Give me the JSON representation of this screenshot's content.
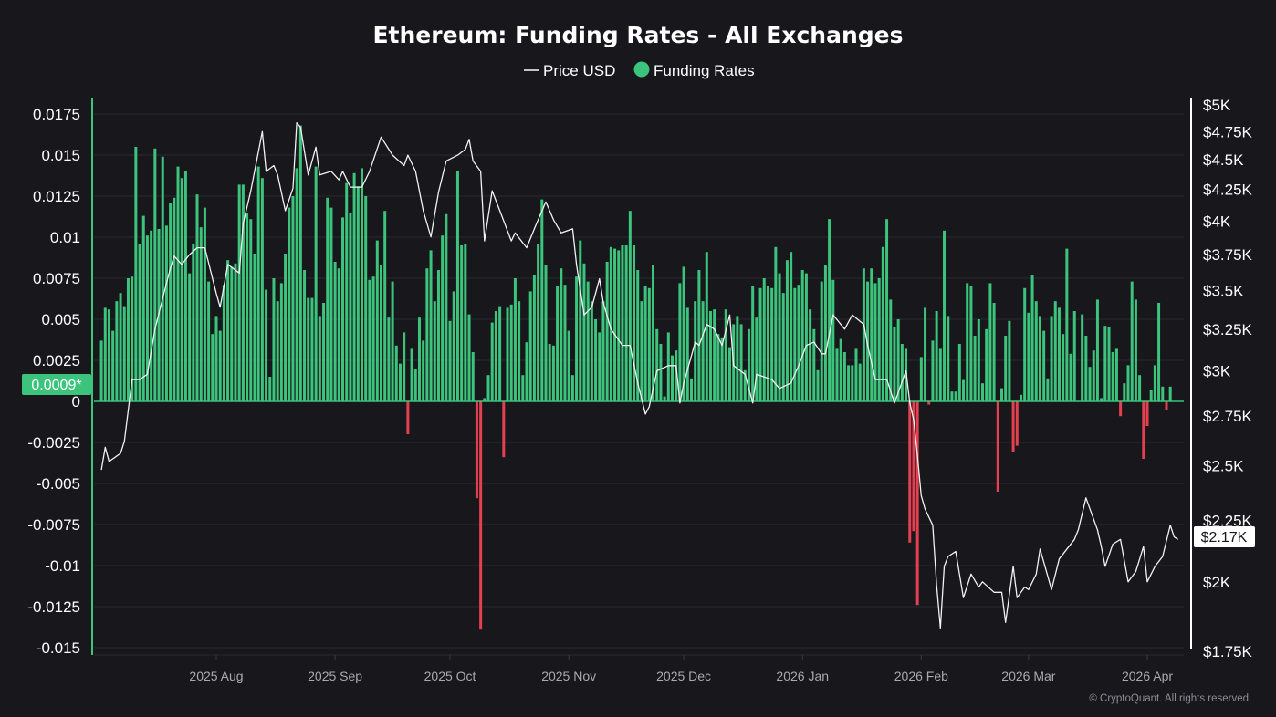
{
  "chart_data": {
    "type": "bar",
    "title": "Ethereum: Funding Rates - All Exchanges",
    "legend": [
      {
        "name": "Price USD",
        "marker": "line",
        "color": "#ffffff"
      },
      {
        "name": "Funding Rates",
        "marker": "dot",
        "color": "#3cc47c"
      }
    ],
    "legend_position": "top-center",
    "colors": {
      "positive": "#3cc47c",
      "negative": "#e5404f",
      "price": "#ffffff",
      "background": "#17171c"
    },
    "grid": true,
    "left_axis": {
      "ticks": [
        "0.0175",
        "0.015",
        "0.0125",
        "0.01",
        "0.0075",
        "0.005",
        "0.0025",
        "0",
        "-0.0025",
        "-0.005",
        "-0.0075",
        "-0.01",
        "-0.0125",
        "-0.015"
      ],
      "ylim": [
        -0.015,
        0.0175
      ]
    },
    "right_axis": {
      "scale": "log",
      "ticks": [
        {
          "label": "$5K",
          "value": 5000
        },
        {
          "label": "$4.75K",
          "value": 4750
        },
        {
          "label": "$4.5K",
          "value": 4500
        },
        {
          "label": "$4.25K",
          "value": 4250
        },
        {
          "label": "$4K",
          "value": 4000
        },
        {
          "label": "$3.75K",
          "value": 3750
        },
        {
          "label": "$3.5K",
          "value": 3500
        },
        {
          "label": "$3.25K",
          "value": 3250
        },
        {
          "label": "$3K",
          "value": 3000
        },
        {
          "label": "$2.75K",
          "value": 2750
        },
        {
          "label": "$2.5K",
          "value": 2500
        },
        {
          "label": "$2.25K",
          "value": 2250
        },
        {
          "label": "$2K",
          "value": 2000
        },
        {
          "label": "$1.75K",
          "value": 1750
        }
      ],
      "ylim": [
        1750,
        5000
      ]
    },
    "x_axis": {
      "ticks": [
        {
          "label": "2025 Aug",
          "date": "2025-08-01"
        },
        {
          "label": "2025 Sep",
          "date": "2025-09-01"
        },
        {
          "label": "2025 Oct",
          "date": "2025-10-01"
        },
        {
          "label": "2025 Nov",
          "date": "2025-11-01"
        },
        {
          "label": "2025 Dec",
          "date": "2025-12-01"
        },
        {
          "label": "2026 Jan",
          "date": "2026-01-01"
        },
        {
          "label": "2026 Feb",
          "date": "2026-02-01"
        },
        {
          "label": "2026 Mar",
          "date": "2026-03-01"
        },
        {
          "label": "2026 Apr",
          "date": "2026-04-01"
        }
      ]
    },
    "current_values": {
      "funding_rate": "0.0009*",
      "price": "$2.17K"
    },
    "funding_rates": [
      {
        "month": "2025-07",
        "start_day": 2,
        "values": [
          0.0037,
          0.0057,
          0.0056,
          0.0043,
          0.0061,
          0.0066,
          0.0058,
          0.0075,
          0.0076,
          0.0155,
          0.0096,
          0.0113,
          0.0101,
          0.0104,
          0.0154,
          0.0105,
          0.0149,
          0.0107,
          0.0121,
          0.0124,
          0.0143,
          0.0136,
          0.014,
          0.0078,
          0.0096,
          0.0126,
          0.0106,
          0.0118,
          0.0073,
          0.0041
        ]
      },
      {
        "month": "2025-08",
        "start_day": 1,
        "values": [
          0.0052,
          0.0043,
          0.0071,
          0.0086,
          0.0082,
          0.0084,
          0.0132,
          0.0132,
          0.0115,
          0.0111,
          0.009,
          0.0143,
          0.0136,
          0.0068,
          0.0015,
          0.0075,
          0.0061,
          0.0072,
          0.009,
          0.0118,
          0.0125,
          0.0142,
          0.0168,
          0.008,
          0.0063,
          0.0063,
          0.0143,
          0.0052,
          0.006,
          0.0124,
          0.0118
        ]
      },
      {
        "month": "2025-09",
        "start_day": 1,
        "values": [
          0.0085,
          0.0081,
          0.0112,
          0.0133,
          0.0115,
          0.0139,
          0.0131,
          0.0142,
          0.0125,
          0.0074,
          0.0076,
          0.0098,
          0.0083,
          0.0116,
          0.0051,
          0.0073,
          0.0034,
          0.0023,
          0.0042,
          -0.002,
          0.0032,
          0.002,
          0.0051,
          0.0037,
          0.0081,
          0.0092,
          0.0061,
          0.008,
          0.0101,
          0.0114
        ]
      },
      {
        "month": "2025-10",
        "start_day": 1,
        "values": [
          0.0049,
          0.0067,
          0.014,
          0.0095,
          0.0096,
          0.0053,
          0.003,
          -0.0059,
          -0.0139,
          0.0002,
          0.0016,
          0.0048,
          0.0055,
          0.0058,
          -0.0034,
          0.0057,
          0.0059,
          0.0075,
          0.0061,
          0.0016,
          0.0036,
          0.0067,
          0.0077,
          0.0096,
          0.0123,
          0.0083,
          0.0035,
          0.0034,
          0.007,
          0.0081,
          0.0071
        ]
      },
      {
        "month": "2025-11",
        "start_day": 1,
        "values": [
          0.0043,
          0.0016,
          0.0076,
          0.0098,
          0.0084,
          0.0073,
          0.0061,
          0.005,
          0.0042,
          0.0061,
          0.0085,
          0.0094,
          0.0093,
          0.0092,
          0.0095,
          0.0095,
          0.0116,
          0.0095,
          0.008,
          0.0061,
          0.007,
          0.0069,
          0.0083,
          0.0044,
          0.0035,
          0.0003,
          0.0042,
          0.0028,
          0.0031,
          0.0072
        ]
      },
      {
        "month": "2025-12",
        "start_day": 1,
        "values": [
          0.0082,
          0.0057,
          0.0014,
          0.0061,
          0.008,
          0.0061,
          0.0091,
          0.0055,
          0.0056,
          0.0041,
          0.0039,
          0.0056,
          0.0033,
          0.0047,
          0.0052,
          0.0047,
          0.0019,
          0.0044,
          0.007,
          0.0051,
          0.0069,
          0.0075,
          0.007,
          0.0069,
          0.0094,
          0.0078,
          0.0066,
          0.0086,
          0.0091,
          0.0069,
          0.0071
        ]
      },
      {
        "month": "2026-01",
        "start_day": 1,
        "values": [
          0.008,
          0.0078,
          0.0056,
          0.0044,
          0.0019,
          0.0073,
          0.0083,
          0.0111,
          0.0074,
          0.0032,
          0.0038,
          0.003,
          0.0022,
          0.0022,
          0.0032,
          0.0023,
          0.0081,
          0.0073,
          0.0081,
          0.0072,
          0.0075,
          0.0094,
          0.0111,
          0.0062,
          0.0045,
          0.005,
          0.0035,
          0.0032,
          -0.0086,
          -0.0079,
          -0.0124
        ]
      },
      {
        "month": "2026-02",
        "start_day": 1,
        "values": [
          0.0027,
          0.0057,
          -0.0002,
          0.0037,
          0.0055,
          0.0032,
          0.0104,
          0.0052,
          0.0006,
          0.0006,
          0.0035,
          0.0013,
          0.0072,
          0.007,
          0.004,
          0.005,
          0.0011,
          0.0044,
          0.0072,
          0.006,
          -0.0055,
          0.0008,
          0.004,
          0.0049,
          -0.0031,
          -0.0027,
          0.0004,
          0.0069
        ]
      },
      {
        "month": "2026-03",
        "start_day": 1,
        "values": [
          0.0054,
          0.0077,
          0.0061,
          0.0052,
          0.0043,
          0.0014,
          0.0052,
          0.0061,
          0.0057,
          0.0041,
          0.0093,
          0.0029,
          0.0055,
          0,
          0.0053,
          0.004,
          0.0021,
          0.0031,
          0.0062,
          0.0002,
          0.0046,
          0.0045,
          0.003,
          0.0032,
          -0.0009,
          0.0011,
          0.0022,
          0.0073,
          0.0062,
          0.0016,
          -0.0035
        ]
      },
      {
        "month": "2026-04",
        "start_day": 1,
        "values": [
          -0.0015,
          0.0007,
          0.0022,
          0.006,
          0.0009,
          -0.0005,
          0.0009
        ]
      }
    ],
    "price_usd": [
      [
        "2025-07-02",
        2480
      ],
      [
        "2025-07-03",
        2590
      ],
      [
        "2025-07-04",
        2520
      ],
      [
        "2025-07-07",
        2560
      ],
      [
        "2025-07-08",
        2620
      ],
      [
        "2025-07-10",
        2950
      ],
      [
        "2025-07-12",
        2950
      ],
      [
        "2025-07-14",
        2980
      ],
      [
        "2025-07-16",
        3250
      ],
      [
        "2025-07-19",
        3550
      ],
      [
        "2025-07-20",
        3650
      ],
      [
        "2025-07-21",
        3740
      ],
      [
        "2025-07-23",
        3680
      ],
      [
        "2025-07-25",
        3750
      ],
      [
        "2025-07-27",
        3800
      ],
      [
        "2025-07-29",
        3800
      ],
      [
        "2025-08-01",
        3480
      ],
      [
        "2025-08-02",
        3390
      ],
      [
        "2025-08-04",
        3680
      ],
      [
        "2025-08-07",
        3620
      ],
      [
        "2025-08-08",
        3980
      ],
      [
        "2025-08-10",
        4240
      ],
      [
        "2025-08-13",
        4750
      ],
      [
        "2025-08-14",
        4400
      ],
      [
        "2025-08-16",
        4450
      ],
      [
        "2025-08-17",
        4370
      ],
      [
        "2025-08-19",
        4080
      ],
      [
        "2025-08-21",
        4260
      ],
      [
        "2025-08-22",
        4830
      ],
      [
        "2025-08-23",
        4790
      ],
      [
        "2025-08-25",
        4370
      ],
      [
        "2025-08-27",
        4610
      ],
      [
        "2025-08-28",
        4370
      ],
      [
        "2025-08-31",
        4400
      ],
      [
        "2025-09-02",
        4330
      ],
      [
        "2025-09-03",
        4400
      ],
      [
        "2025-09-05",
        4270
      ],
      [
        "2025-09-08",
        4270
      ],
      [
        "2025-09-10",
        4400
      ],
      [
        "2025-09-13",
        4700
      ],
      [
        "2025-09-16",
        4540
      ],
      [
        "2025-09-19",
        4450
      ],
      [
        "2025-09-20",
        4540
      ],
      [
        "2025-09-22",
        4400
      ],
      [
        "2025-09-24",
        4080
      ],
      [
        "2025-09-26",
        3880
      ],
      [
        "2025-09-28",
        4230
      ],
      [
        "2025-09-30",
        4490
      ],
      [
        "2025-10-03",
        4540
      ],
      [
        "2025-10-05",
        4590
      ],
      [
        "2025-10-06",
        4680
      ],
      [
        "2025-10-07",
        4490
      ],
      [
        "2025-10-09",
        4400
      ],
      [
        "2025-10-10",
        3850
      ],
      [
        "2025-10-12",
        4240
      ],
      [
        "2025-10-14",
        4080
      ],
      [
        "2025-10-17",
        3850
      ],
      [
        "2025-10-18",
        3910
      ],
      [
        "2025-10-21",
        3800
      ],
      [
        "2025-10-23",
        3940
      ],
      [
        "2025-10-26",
        4150
      ],
      [
        "2025-10-28",
        4010
      ],
      [
        "2025-10-30",
        3910
      ],
      [
        "2025-11-02",
        3940
      ],
      [
        "2025-11-03",
        3680
      ],
      [
        "2025-11-05",
        3340
      ],
      [
        "2025-11-07",
        3390
      ],
      [
        "2025-11-09",
        3580
      ],
      [
        "2025-11-10",
        3420
      ],
      [
        "2025-11-12",
        3250
      ],
      [
        "2025-11-15",
        3150
      ],
      [
        "2025-11-17",
        3150
      ],
      [
        "2025-11-19",
        2930
      ],
      [
        "2025-11-21",
        2760
      ],
      [
        "2025-11-22",
        2800
      ],
      [
        "2025-11-24",
        3000
      ],
      [
        "2025-11-27",
        3030
      ],
      [
        "2025-11-29",
        3030
      ],
      [
        "2025-11-30",
        2820
      ],
      [
        "2025-12-01",
        2930
      ],
      [
        "2025-12-04",
        3170
      ],
      [
        "2025-12-05",
        3150
      ],
      [
        "2025-12-07",
        3280
      ],
      [
        "2025-12-09",
        3250
      ],
      [
        "2025-12-11",
        3150
      ],
      [
        "2025-12-13",
        3340
      ],
      [
        "2025-12-14",
        3030
      ],
      [
        "2025-12-17",
        2980
      ],
      [
        "2025-12-19",
        2820
      ],
      [
        "2025-12-20",
        2980
      ],
      [
        "2025-12-24",
        2950
      ],
      [
        "2025-12-26",
        2900
      ],
      [
        "2025-12-29",
        2930
      ],
      [
        "2025-12-31",
        3030
      ],
      [
        "2026-01-02",
        3150
      ],
      [
        "2026-01-04",
        3170
      ],
      [
        "2026-01-06",
        3100
      ],
      [
        "2026-01-07",
        3100
      ],
      [
        "2026-01-09",
        3340
      ],
      [
        "2026-01-10",
        3310
      ],
      [
        "2026-01-12",
        3250
      ],
      [
        "2026-01-14",
        3340
      ],
      [
        "2026-01-17",
        3280
      ],
      [
        "2026-01-18",
        3150
      ],
      [
        "2026-01-20",
        2950
      ],
      [
        "2026-01-23",
        2950
      ],
      [
        "2026-01-25",
        2820
      ],
      [
        "2026-01-28",
        3000
      ],
      [
        "2026-01-29",
        2820
      ],
      [
        "2026-01-30",
        2730
      ],
      [
        "2026-01-31",
        2550
      ],
      [
        "2026-02-01",
        2360
      ],
      [
        "2026-02-02",
        2300
      ],
      [
        "2026-02-04",
        2230
      ],
      [
        "2026-02-05",
        1990
      ],
      [
        "2026-02-06",
        1830
      ],
      [
        "2026-02-07",
        2060
      ],
      [
        "2026-02-08",
        2100
      ],
      [
        "2026-02-10",
        2120
      ],
      [
        "2026-02-12",
        1940
      ],
      [
        "2026-02-14",
        2030
      ],
      [
        "2026-02-16",
        1980
      ],
      [
        "2026-02-17",
        2000
      ],
      [
        "2026-02-20",
        1960
      ],
      [
        "2026-02-22",
        1960
      ],
      [
        "2026-02-23",
        1850
      ],
      [
        "2026-02-25",
        2060
      ],
      [
        "2026-02-26",
        1940
      ],
      [
        "2026-02-28",
        1980
      ],
      [
        "2026-03-01",
        1970
      ],
      [
        "2026-03-03",
        2030
      ],
      [
        "2026-03-04",
        2130
      ],
      [
        "2026-03-07",
        1970
      ],
      [
        "2026-03-09",
        2090
      ],
      [
        "2026-03-13",
        2170
      ],
      [
        "2026-03-14",
        2210
      ],
      [
        "2026-03-16",
        2350
      ],
      [
        "2026-03-19",
        2210
      ],
      [
        "2026-03-20",
        2140
      ],
      [
        "2026-03-21",
        2060
      ],
      [
        "2026-03-23",
        2150
      ],
      [
        "2026-03-25",
        2170
      ],
      [
        "2026-03-27",
        2000
      ],
      [
        "2026-03-29",
        2040
      ],
      [
        "2026-03-31",
        2140
      ],
      [
        "2026-04-01",
        2000
      ],
      [
        "2026-04-03",
        2060
      ],
      [
        "2026-04-05",
        2100
      ],
      [
        "2026-04-07",
        2230
      ],
      [
        "2026-04-08",
        2180
      ],
      [
        "2026-04-09",
        2170
      ]
    ]
  },
  "footer": {
    "copyright": "© CryptoQuant. All rights reserved"
  }
}
